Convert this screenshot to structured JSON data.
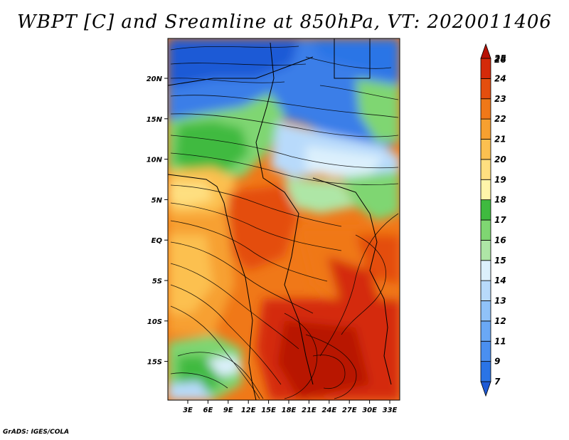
{
  "title": "WBPT [C] and Sreamline at 850hPa, VT: 2020011406",
  "credit": "GrADS: IGES/COLA",
  "map": {
    "lat_labels": [
      "20N",
      "15N",
      "10N",
      "5N",
      "EQ",
      "5S",
      "10S",
      "15S"
    ],
    "lon_labels": [
      "3E",
      "6E",
      "9E",
      "12E",
      "15E",
      "18E",
      "21E",
      "24E",
      "27E",
      "30E",
      "33E"
    ]
  },
  "colorbar": {
    "labels": [
      "7",
      "9",
      "11",
      "12",
      "13",
      "14",
      "15",
      "16",
      "17",
      "18",
      "19",
      "20",
      "21",
      "22",
      "23",
      "24",
      "25",
      "26"
    ],
    "colors": [
      "#1e5ad6",
      "#2a74e6",
      "#4a8ff0",
      "#6aa8f5",
      "#90c2f8",
      "#b8dafb",
      "#dcf0fc",
      "#aee6a6",
      "#7fd672",
      "#3fba3f",
      "#fff5aa",
      "#fedf80",
      "#fcc050",
      "#f7a030",
      "#f07818",
      "#e44e0e",
      "#d42a0a",
      "#b81206"
    ]
  }
}
